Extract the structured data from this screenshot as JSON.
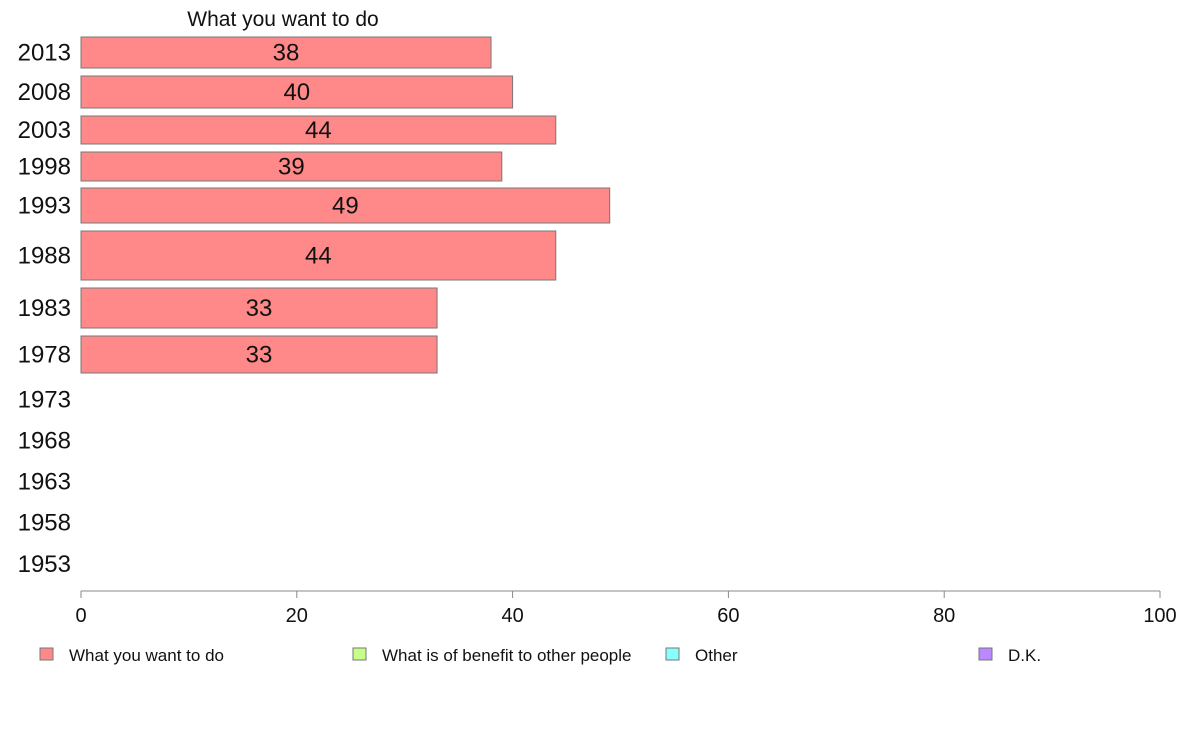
{
  "chart_data": {
    "type": "bar",
    "orientation": "horizontal",
    "title": "What you want to do",
    "categories": [
      "2013",
      "2008",
      "2003",
      "1998",
      "1993",
      "1988",
      "1983",
      "1978",
      "1973",
      "1968",
      "1963",
      "1958",
      "1953"
    ],
    "series": [
      {
        "name": "What you want to do",
        "color": "#ff8888",
        "values": [
          38,
          40,
          44,
          39,
          49,
          44,
          33,
          33,
          null,
          null,
          null,
          null,
          null
        ]
      },
      {
        "name": "What is of benefit to other people",
        "color": "#c6ff88",
        "values": [
          null,
          null,
          null,
          null,
          null,
          null,
          null,
          null,
          null,
          null,
          null,
          null,
          null
        ]
      },
      {
        "name": "Other",
        "color": "#88ffff",
        "values": [
          null,
          null,
          null,
          null,
          null,
          null,
          null,
          null,
          null,
          null,
          null,
          null,
          null
        ]
      },
      {
        "name": "D.K.",
        "color": "#bb88ff",
        "values": [
          null,
          null,
          null,
          null,
          null,
          null,
          null,
          null,
          null,
          null,
          null,
          null,
          null
        ]
      }
    ],
    "data_labels": [
      "38",
      "40",
      "44",
      "39",
      "49",
      "44",
      "33",
      "33",
      "",
      "",
      "",
      "",
      ""
    ],
    "xlim": [
      0,
      100
    ],
    "xticks": [
      "0",
      "20",
      "40",
      "60",
      "80",
      "100"
    ],
    "xlabel": "",
    "ylabel": "",
    "grid": false,
    "legend_position": "bottom"
  }
}
